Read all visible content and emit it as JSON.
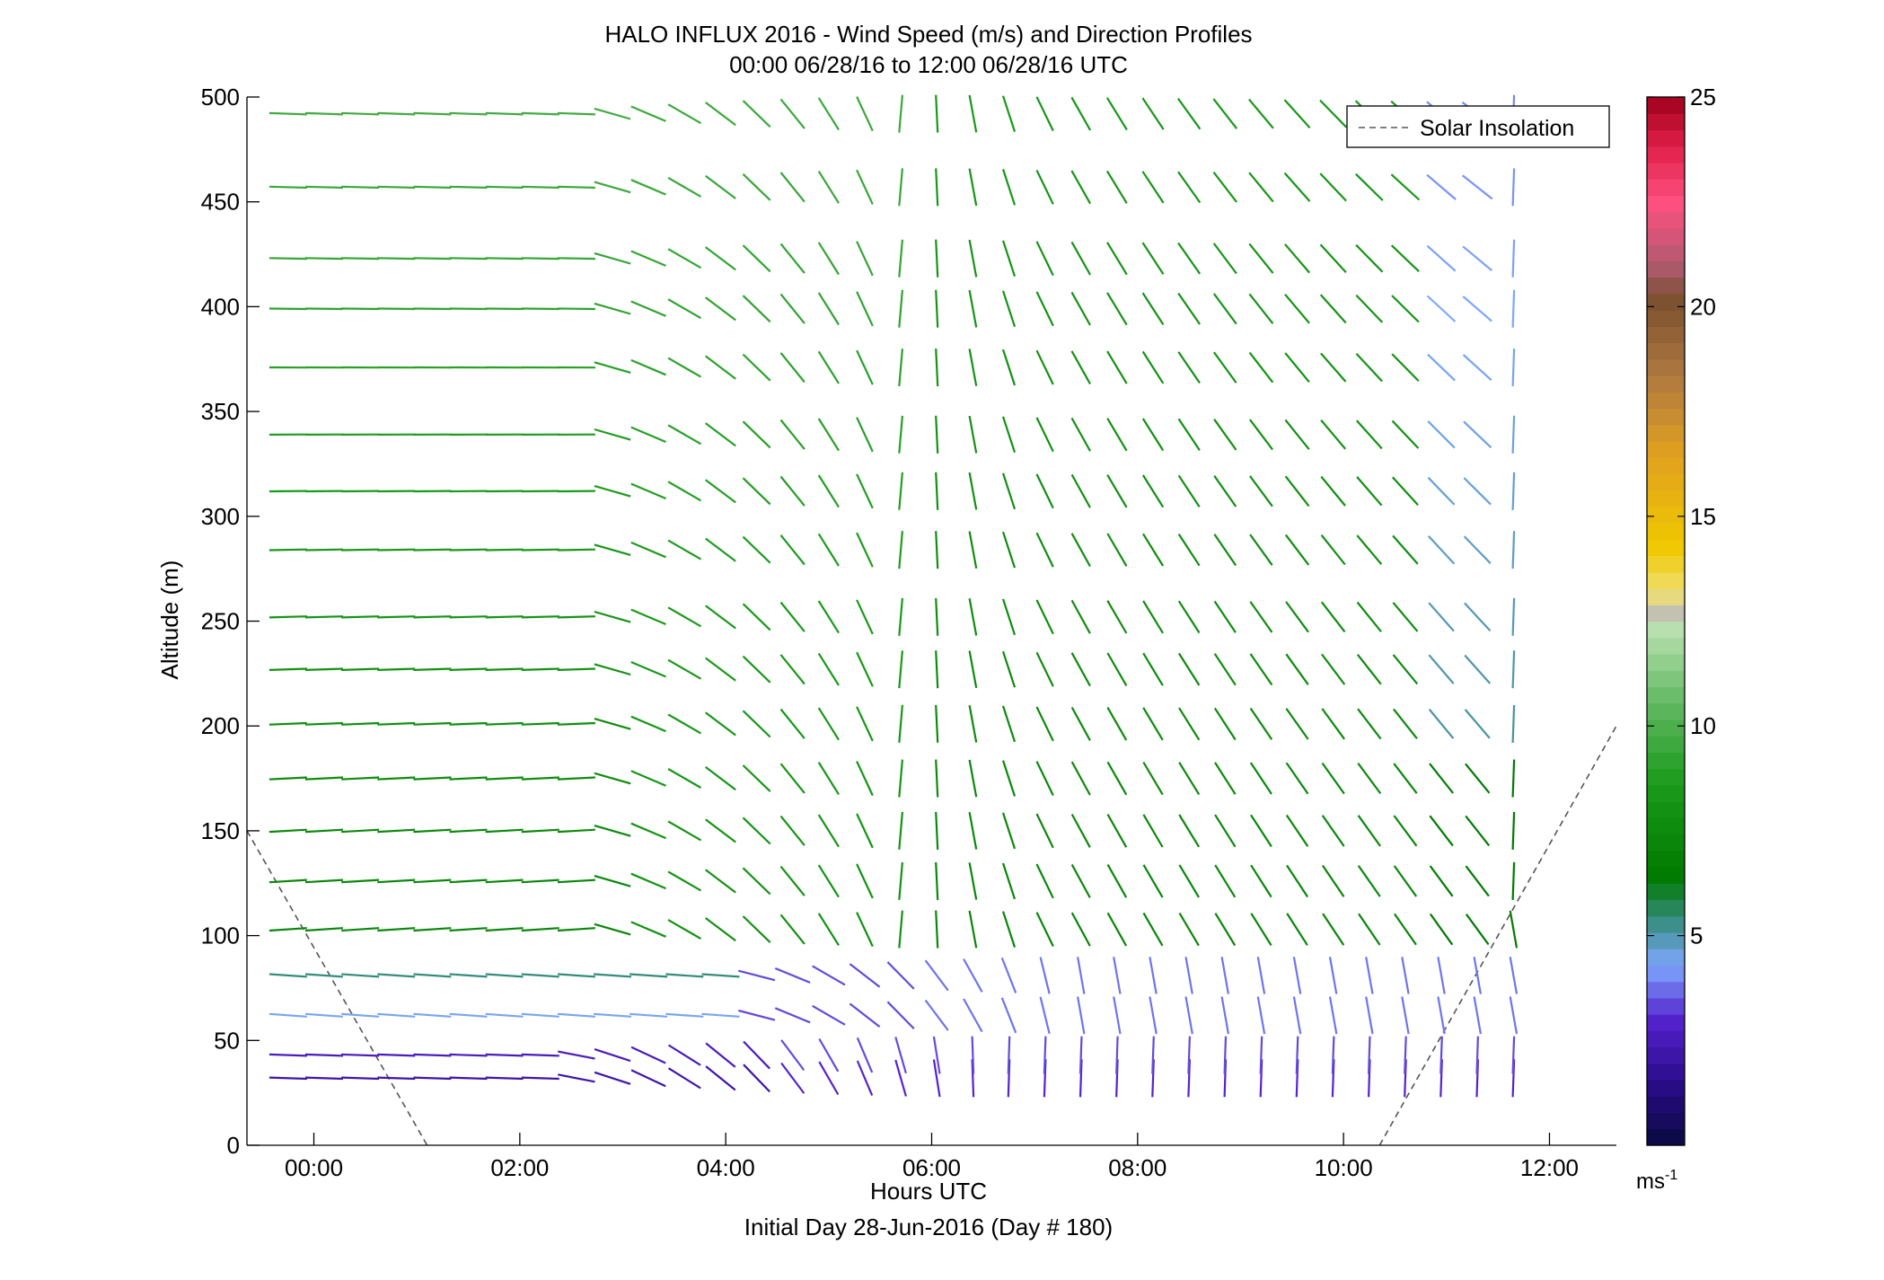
{
  "title_line1": "HALO INFLUX 2016 - Wind Speed (m/s) and Direction Profiles",
  "title_line2": "00:00 06/28/16 to 12:00 06/28/16  UTC",
  "xlabel": "Hours UTC",
  "xlabel2": "Initial Day 28-Jun-2016 (Day # 180)",
  "ylabel": "Altitude (m)",
  "legend_label": "Solar Insolation",
  "colorbar_unit": "ms",
  "colorbar_unit_exp": "-1",
  "colors": {
    "axis": "#000000",
    "legend_line": "#555555"
  },
  "chart_data": {
    "type": "wind-barb profile (scatter of direction sticks)",
    "x_unit": "hours UTC",
    "y_unit": "m",
    "xlim": [
      -0.65,
      12.65
    ],
    "ylim": [
      0,
      500
    ],
    "x_ticks": [
      {
        "value": 0,
        "label": "00:00"
      },
      {
        "value": 2,
        "label": "02:00"
      },
      {
        "value": 4,
        "label": "04:00"
      },
      {
        "value": 6,
        "label": "06:00"
      },
      {
        "value": 8,
        "label": "08:00"
      },
      {
        "value": 10,
        "label": "10:00"
      },
      {
        "value": 12,
        "label": "12:00"
      }
    ],
    "y_ticks": [
      0,
      50,
      100,
      150,
      200,
      250,
      300,
      350,
      400,
      450,
      500
    ],
    "times": [
      -0.25,
      0.1,
      0.45,
      0.8,
      1.15,
      1.5,
      1.85,
      2.2,
      2.55,
      2.9,
      3.25,
      3.6,
      3.95,
      4.3,
      4.65,
      5.0,
      5.35,
      5.7,
      6.05,
      6.4,
      6.75,
      7.1,
      7.45,
      7.8,
      8.15,
      8.5,
      8.85,
      9.2,
      9.55,
      9.9,
      10.25,
      10.6,
      10.95,
      11.3,
      11.65
    ],
    "altitudes": [
      32,
      43,
      62,
      81,
      103,
      126,
      150,
      175,
      201,
      227,
      252,
      284,
      312,
      339,
      371,
      399,
      423,
      457,
      492
    ],
    "profile_note": "Direction sticks point from the wind origin; low levels (32-62 m) are 2-4 m/s early, 100-500 m are 7-10 m/s westerly before 04:00, turning to northerly/northeasterly after 06:00.",
    "colorbar": {
      "min": 0,
      "max": 25,
      "ticks": [
        5,
        10,
        15,
        20,
        25
      ],
      "stops": [
        {
          "v": 0,
          "c": "#0a0a40"
        },
        {
          "v": 1.5,
          "c": "#2a0c8a"
        },
        {
          "v": 3,
          "c": "#5522cc"
        },
        {
          "v": 4.3,
          "c": "#7fa8ff"
        },
        {
          "v": 5.3,
          "c": "#3a8e88"
        },
        {
          "v": 6.4,
          "c": "#007a00"
        },
        {
          "v": 8.6,
          "c": "#1a9a1a"
        },
        {
          "v": 10.5,
          "c": "#60b860"
        },
        {
          "v": 12.3,
          "c": "#b8e0b0"
        },
        {
          "v": 12.6,
          "c": "#bbbbbb"
        },
        {
          "v": 13.2,
          "c": "#f0e070"
        },
        {
          "v": 14.3,
          "c": "#f0c800"
        },
        {
          "v": 16.5,
          "c": "#e0a020"
        },
        {
          "v": 18.3,
          "c": "#b07a40"
        },
        {
          "v": 20.2,
          "c": "#7a5030"
        },
        {
          "v": 21,
          "c": "#b05a70"
        },
        {
          "v": 22.5,
          "c": "#ff5080"
        },
        {
          "v": 23.8,
          "c": "#e0204a"
        },
        {
          "v": 25,
          "c": "#a0001c"
        }
      ]
    },
    "solar_insolation": {
      "style": "dashed",
      "segments": [
        [
          [
            -0.65,
            150
          ],
          [
            1.1,
            0
          ]
        ],
        [
          [
            10.35,
            0
          ],
          [
            12.65,
            200
          ]
        ]
      ]
    }
  }
}
